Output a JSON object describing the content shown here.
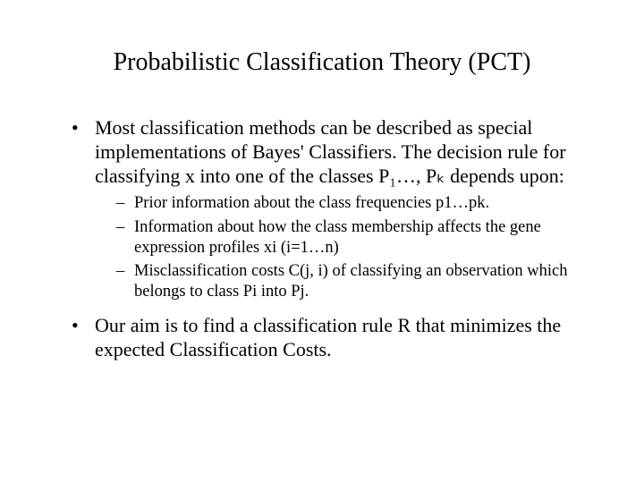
{
  "title": "Probabilistic Classification Theory (PCT)",
  "bullets": {
    "b1": "Most classification methods can be described as special implementations of Bayes' Classifiers.  The decision rule for classifying x into one of the classes P₁…, Pₖ depends upon:",
    "sub1": "Prior information about the class frequencies p1…pk.",
    "sub2": "Information about how the class membership affects the gene expression profiles xi (i=1…n)",
    "sub3": "Misclassification costs C(j, i) of classifying an observation which belongs to class Pi into Pj.",
    "b2": "Our aim is to find a classification rule R that minimizes the expected Classification Costs."
  },
  "colors": {
    "background": "#ffffff",
    "text": "#000000"
  },
  "fonts": {
    "family": "Times New Roman",
    "title_size_pt": 28,
    "body_size_pt": 22,
    "sub_size_pt": 18.5
  }
}
